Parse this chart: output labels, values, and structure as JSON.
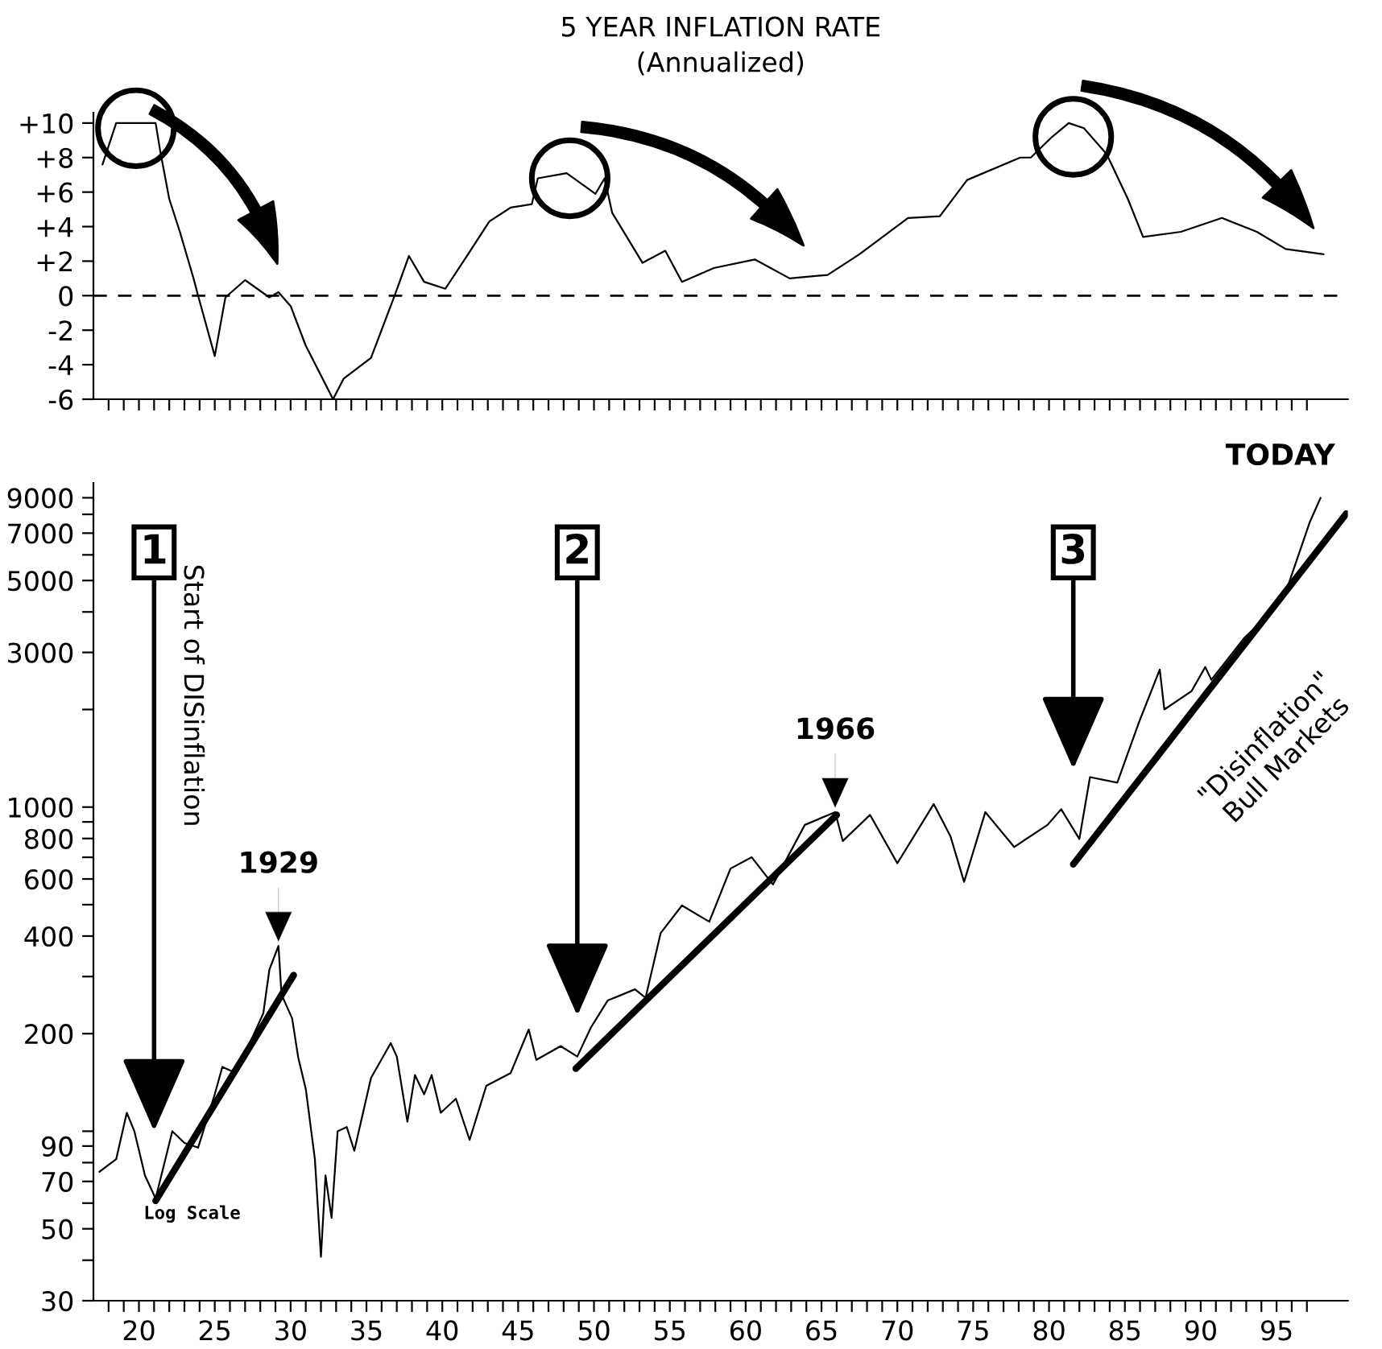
{
  "chart_data": [
    {
      "type": "line",
      "title": "5 YEAR INFLATION RATE",
      "subtitle": "(Annualized)",
      "x": [
        17.6,
        18.5,
        21.1,
        21.4,
        22.0,
        22.7,
        23.6,
        23.9,
        25.0,
        25.7,
        27.0,
        28.6,
        29.2,
        30.0,
        31.0,
        32.8,
        33.5,
        35.3,
        36.9,
        37.8,
        38.8,
        40.2,
        41.7,
        43.1,
        44.5,
        45.9,
        46.3,
        48.2,
        50.1,
        50.7,
        51.2,
        53.2,
        54.7,
        55.8,
        57.9,
        60.6,
        62.9,
        65.4,
        67.5,
        70.7,
        72.8,
        74.6,
        78.1,
        78.8,
        80.2,
        81.3,
        82.3,
        83.8,
        85.2,
        86.2,
        88.7,
        91.4,
        93.7,
        95.6,
        98.1
      ],
      "series": [
        {
          "color": "#000000",
          "values": [
            7.6,
            10.0,
            10.0,
            8.4,
            5.6,
            3.7,
            1.0,
            0,
            -3.5,
            -0.1,
            0.9,
            -0.1,
            0.2,
            -0.6,
            -2.9,
            -6.0,
            -4.8,
            -3.6,
            0.1,
            2.3,
            0.8,
            0.4,
            2.4,
            4.3,
            5.1,
            5.3,
            6.8,
            7.1,
            5.9,
            6.8,
            4.8,
            1.9,
            2.6,
            0.8,
            1.6,
            2.1,
            1.0,
            1.2,
            2.4,
            4.5,
            4.6,
            6.7,
            8.0,
            8.0,
            9.2,
            10.0,
            9.7,
            8.2,
            5.6,
            3.4,
            3.7,
            4.5,
            3.7,
            2.7,
            2.4
          ]
        }
      ],
      "xlim": [
        17,
        99.7
      ],
      "xticks": [
        18,
        19,
        20,
        21,
        22,
        23,
        24,
        25,
        26,
        27,
        28,
        29,
        30,
        31,
        32,
        33,
        34,
        35,
        36,
        37,
        38,
        39,
        40,
        41,
        42,
        43,
        44,
        45,
        46,
        47,
        48,
        49,
        50,
        51,
        52,
        53,
        54,
        55,
        56,
        57,
        58,
        59,
        60,
        61,
        62,
        63,
        64,
        65,
        66,
        67,
        68,
        69,
        70,
        71,
        72,
        73,
        74,
        75,
        76,
        77,
        78,
        79,
        80,
        81,
        82,
        83,
        84,
        85,
        86,
        87,
        88,
        89,
        90,
        91,
        92,
        93,
        94,
        95,
        96,
        97
      ],
      "ylim": [
        -6,
        10.6
      ],
      "yticks": [
        {
          "value": 10,
          "label": "+10"
        },
        {
          "value": 8,
          "label": "+8"
        },
        {
          "value": 6,
          "label": "+6"
        },
        {
          "value": 4,
          "label": "+4"
        },
        {
          "value": 2,
          "label": "+2"
        },
        0,
        {
          "value": -2,
          "label": "-2"
        },
        {
          "value": -4,
          "label": "-4"
        },
        {
          "value": -6,
          "label": "-6"
        }
      ],
      "tick_labels": "y",
      "ref_lines": [
        {
          "axis": "y",
          "value": 0,
          "line_style": "dashed",
          "color": "#000000"
        }
      ]
    },
    {
      "type": "line",
      "log": true,
      "x": [
        17.4,
        18.5,
        19.2,
        19.7,
        20.4,
        21.1,
        22.2,
        23.0,
        23.9,
        25.0,
        25.5,
        26.4,
        28.2,
        28.6,
        29.2,
        29.4,
        30.1,
        30.5,
        31.0,
        31.6,
        32.0,
        32.3,
        32.7,
        33.1,
        33.7,
        34.2,
        35.3,
        36.6,
        37.0,
        37.7,
        38.2,
        38.8,
        39.3,
        39.9,
        40.9,
        41.8,
        42.9,
        44.5,
        45.7,
        46.2,
        47.8,
        48.9,
        49.8,
        50.9,
        52.7,
        53.4,
        54.4,
        55.8,
        57.6,
        59.0,
        60.4,
        61.8,
        63.9,
        65.9,
        66.4,
        68.2,
        70.0,
        72.4,
        73.5,
        74.4,
        75.8,
        77.7,
        79.9,
        80.8,
        82.0,
        82.7,
        84.5,
        85.9,
        87.3,
        87.6,
        89.4,
        90.3,
        90.7,
        92.9,
        94.4,
        95.8,
        97.2,
        97.9
      ],
      "series": [
        {
          "color": "#000000",
          "values": [
            75,
            82,
            114,
            100,
            73,
            62,
            100,
            92,
            89,
            130,
            158,
            151,
            231,
            315,
            373,
            264,
            223,
            169,
            135,
            82,
            41,
            73,
            54,
            100,
            103,
            87,
            146,
            187,
            170,
            107,
            149,
            130,
            149,
            114,
            126,
            94,
            138,
            151,
            206,
            166,
            183,
            170,
            209,
            253,
            274,
            258,
            409,
            497,
            443,
            646,
            700,
            577,
            881,
            965,
            786,
            946,
            671,
            1022,
            813,
            588,
            965,
            753,
            881,
            985,
            797,
            1237,
            1190,
            1812,
            2655,
            2000,
            2280,
            2706,
            2469,
            3335,
            3890,
            4890,
            7590,
            9000
          ]
        },
        {
          "color": "#000000",
          "x": [
            21.1,
            30.2
          ],
          "values": [
            61,
            303
          ]
        },
        {
          "color": "#000000",
          "x": [
            48.8,
            66.0
          ],
          "values": [
            156,
            946
          ]
        },
        {
          "color": "#000000",
          "x": [
            81.6,
            99.6
          ],
          "values": [
            666,
            8040
          ]
        }
      ],
      "xlim": [
        17,
        99.7
      ],
      "xticks": [
        {
          "value": 18,
          "label": null
        },
        {
          "value": 19,
          "label": null
        },
        20,
        {
          "value": 21,
          "label": null
        },
        {
          "value": 22,
          "label": null
        },
        {
          "value": 23,
          "label": null
        },
        {
          "value": 24,
          "label": null
        },
        25,
        {
          "value": 26,
          "label": null
        },
        {
          "value": 27,
          "label": null
        },
        {
          "value": 28,
          "label": null
        },
        {
          "value": 29,
          "label": null
        },
        30,
        {
          "value": 31,
          "label": null
        },
        {
          "value": 32,
          "label": null
        },
        {
          "value": 33,
          "label": null
        },
        {
          "value": 34,
          "label": null
        },
        35,
        {
          "value": 36,
          "label": null
        },
        {
          "value": 37,
          "label": null
        },
        {
          "value": 38,
          "label": null
        },
        {
          "value": 39,
          "label": null
        },
        40,
        {
          "value": 41,
          "label": null
        },
        {
          "value": 42,
          "label": null
        },
        {
          "value": 43,
          "label": null
        },
        {
          "value": 44,
          "label": null
        },
        45,
        {
          "value": 46,
          "label": null
        },
        {
          "value": 47,
          "label": null
        },
        {
          "value": 48,
          "label": null
        },
        {
          "value": 49,
          "label": null
        },
        50,
        {
          "value": 51,
          "label": null
        },
        {
          "value": 52,
          "label": null
        },
        {
          "value": 53,
          "label": null
        },
        {
          "value": 54,
          "label": null
        },
        55,
        {
          "value": 56,
          "label": null
        },
        {
          "value": 57,
          "label": null
        },
        {
          "value": 58,
          "label": null
        },
        {
          "value": 59,
          "label": null
        },
        60,
        {
          "value": 61,
          "label": null
        },
        {
          "value": 62,
          "label": null
        },
        {
          "value": 63,
          "label": null
        },
        {
          "value": 64,
          "label": null
        },
        65,
        {
          "value": 66,
          "label": null
        },
        {
          "value": 67,
          "label": null
        },
        {
          "value": 68,
          "label": null
        },
        {
          "value": 69,
          "label": null
        },
        70,
        {
          "value": 71,
          "label": null
        },
        {
          "value": 72,
          "label": null
        },
        {
          "value": 73,
          "label": null
        },
        {
          "value": 74,
          "label": null
        },
        75,
        {
          "value": 76,
          "label": null
        },
        {
          "value": 77,
          "label": null
        },
        {
          "value": 78,
          "label": null
        },
        {
          "value": 79,
          "label": null
        },
        80,
        {
          "value": 81,
          "label": null
        },
        {
          "value": 82,
          "label": null
        },
        {
          "value": 83,
          "label": null
        },
        {
          "value": 84,
          "label": null
        },
        85,
        {
          "value": 86,
          "label": null
        },
        {
          "value": 87,
          "label": null
        },
        {
          "value": 88,
          "label": null
        },
        {
          "value": 89,
          "label": null
        },
        90,
        {
          "value": 91,
          "label": null
        },
        {
          "value": 92,
          "label": null
        },
        {
          "value": 93,
          "label": null
        },
        {
          "value": 94,
          "label": null
        },
        95,
        {
          "value": 96,
          "label": null
        },
        {
          "value": 97,
          "label": null
        }
      ],
      "ylim": [
        30,
        10000
      ],
      "yticks": [
        30,
        {
          "value": 40,
          "label": null
        },
        50,
        {
          "value": 60,
          "label": null
        },
        70,
        {
          "value": 80,
          "label": null
        },
        90,
        {
          "value": 100,
          "label": null
        },
        200,
        {
          "value": 300,
          "label": null
        },
        400,
        {
          "value": 500,
          "label": null
        },
        600,
        {
          "value": 700,
          "label": null
        },
        800,
        {
          "value": 900,
          "label": null
        },
        1000,
        {
          "value": 2000,
          "label": null
        },
        3000,
        {
          "value": 4000,
          "label": null
        },
        5000,
        {
          "value": 6000,
          "label": null
        },
        7000,
        {
          "value": 8000,
          "label": null
        },
        9000
      ],
      "annotations": [
        "1",
        "2",
        "3",
        "Start of DISinflation",
        {
          "text": "1929",
          "x": 29.2,
          "y": 373
        },
        {
          "text": "1966",
          "x": 65.9,
          "y": 965
        },
        {
          "text": "TODAY",
          "x": 97.9,
          "y": 9000
        },
        "\"Disinflation\"\nBull Markets",
        "Log Scale"
      ]
    }
  ]
}
